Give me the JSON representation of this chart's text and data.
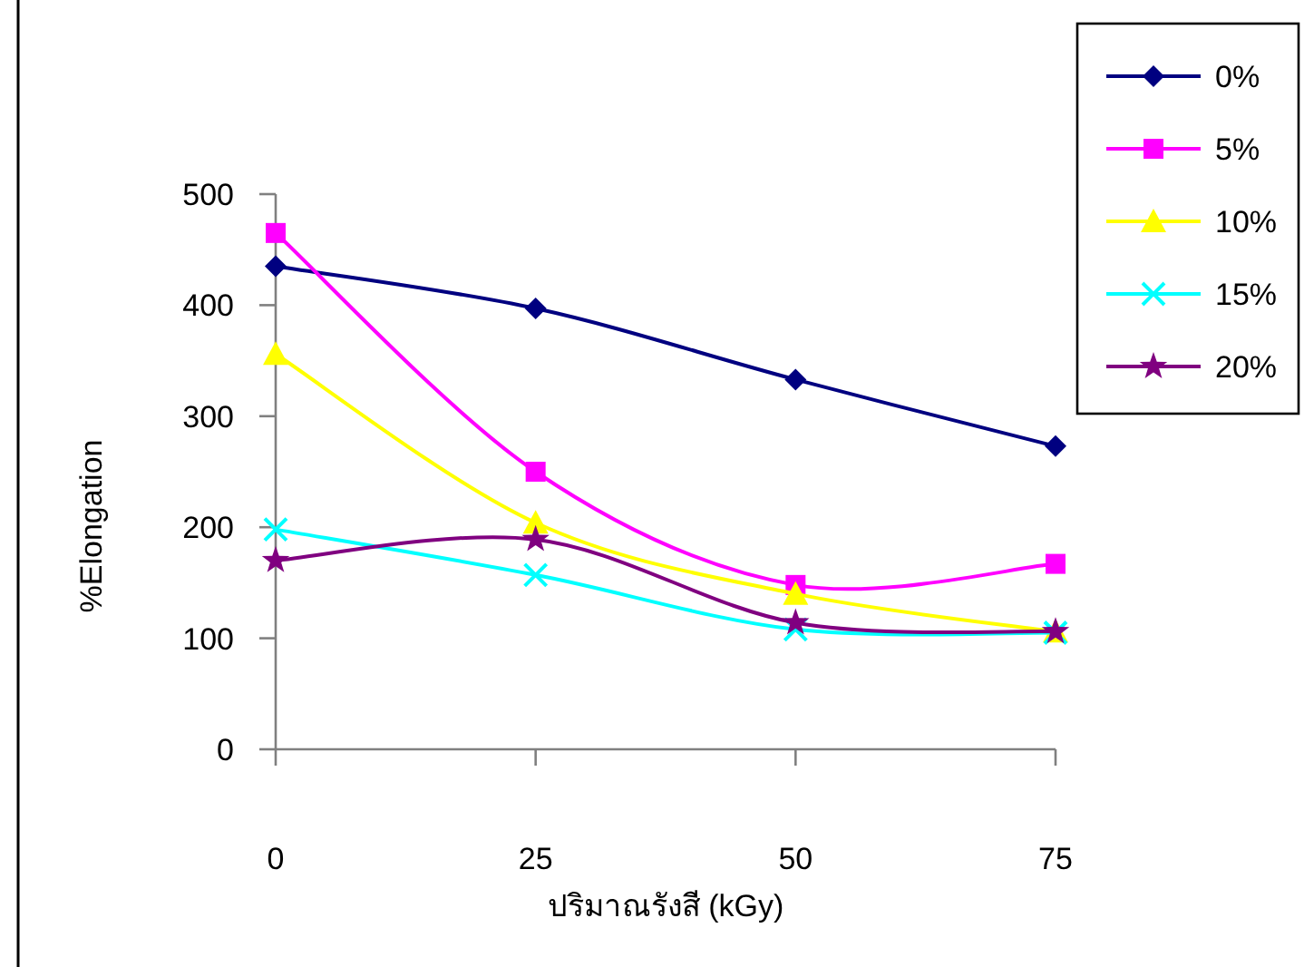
{
  "chart_data": {
    "type": "line",
    "xlabel": "ปริมาณรังสี (kGy)",
    "ylabel": "%Elongation",
    "x": [
      0,
      25,
      50,
      75
    ],
    "xlim": [
      0,
      75
    ],
    "xticks": [
      0,
      25,
      50,
      75
    ],
    "ylim": [
      0,
      500
    ],
    "yticks": [
      0,
      100,
      200,
      300,
      400,
      500
    ],
    "grid": false,
    "legend": "right",
    "line_style": "solid",
    "series": [
      {
        "name": "0%",
        "color": "#000080",
        "marker": "diamond",
        "values": [
          435,
          397,
          333,
          273
        ]
      },
      {
        "name": "5%",
        "color": "#ff00ff",
        "marker": "square",
        "values": [
          465,
          250,
          148,
          167
        ]
      },
      {
        "name": "10%",
        "color": "#ffff00",
        "marker": "triangle",
        "values": [
          356,
          204,
          140,
          106
        ]
      },
      {
        "name": "15%",
        "color": "#00ffff",
        "marker": "cross",
        "values": [
          198,
          157,
          108,
          105
        ]
      },
      {
        "name": "20%",
        "color": "#800080",
        "marker": "star",
        "values": [
          170,
          189,
          114,
          106
        ]
      }
    ]
  }
}
